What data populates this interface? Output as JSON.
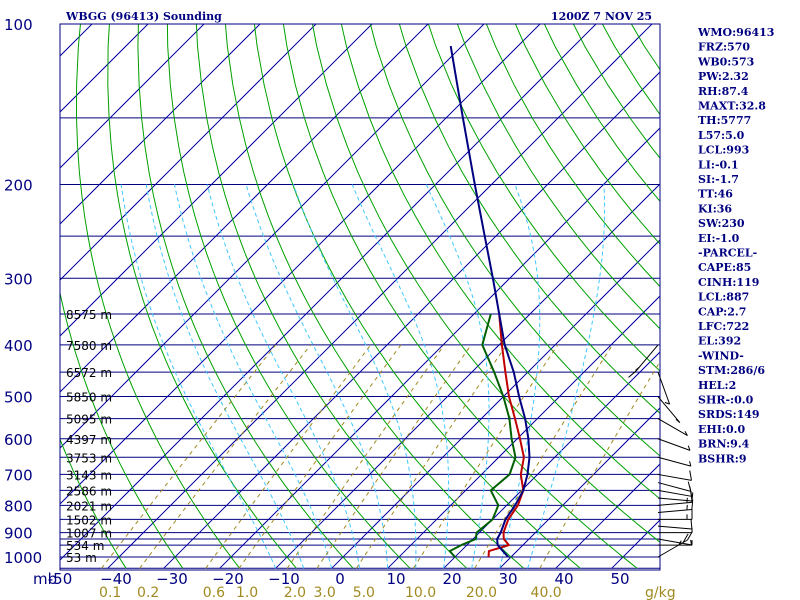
{
  "chart_data": {
    "type": "skew-t sounding",
    "title_left": "WBGG (96413) Sounding",
    "title_right": "1200Z  7 NOV 25",
    "pressure_unit_label": "mb",
    "mixing_ratio_unit_label": "g/kg",
    "pressure_ticks": [
      {
        "p": 100,
        "label": "100"
      },
      {
        "p": 200,
        "label": "200"
      },
      {
        "p": 300,
        "label": "300"
      },
      {
        "p": 400,
        "label": "400"
      },
      {
        "p": 500,
        "label": "500"
      },
      {
        "p": 600,
        "label": "600"
      },
      {
        "p": 700,
        "label": "700"
      },
      {
        "p": 800,
        "label": "800"
      },
      {
        "p": 900,
        "label": "900"
      },
      {
        "p": 1000,
        "label": "1000"
      }
    ],
    "isobars_mb": [
      100,
      150,
      200,
      250,
      300,
      350,
      400,
      450,
      500,
      550,
      600,
      650,
      700,
      750,
      800,
      850,
      900,
      925,
      950,
      1000,
      1050
    ],
    "temperature_ticks": [
      {
        "t": -50,
        "label": "-50"
      },
      {
        "t": -40,
        "label": "−40"
      },
      {
        "t": -30,
        "label": "−30"
      },
      {
        "t": -20,
        "label": "−20"
      },
      {
        "t": -10,
        "label": "−10"
      },
      {
        "t": 0,
        "label": "0"
      },
      {
        "t": 10,
        "label": "10"
      },
      {
        "t": 20,
        "label": "20"
      },
      {
        "t": 30,
        "label": "30"
      },
      {
        "t": 40,
        "label": "40"
      },
      {
        "t": 50,
        "label": "50"
      }
    ],
    "mixing_ratio_labels": [
      "0.1",
      "0.2",
      "0.6",
      "1.0",
      "2.0",
      "3.0",
      "5.0",
      "10.0",
      "20.0",
      "40.0"
    ],
    "height_labels": [
      {
        "p": 350,
        "label": "8575 m"
      },
      {
        "p": 400,
        "label": "7580 m"
      },
      {
        "p": 450,
        "label": "6572 m"
      },
      {
        "p": 500,
        "label": "5850 m"
      },
      {
        "p": 550,
        "label": "5095 m"
      },
      {
        "p": 600,
        "label": "4397 m"
      },
      {
        "p": 650,
        "label": "3753 m"
      },
      {
        "p": 700,
        "label": "3143 m"
      },
      {
        "p": 750,
        "label": "2586 m"
      },
      {
        "p": 800,
        "label": "2021 m"
      },
      {
        "p": 850,
        "label": "1502 m"
      },
      {
        "p": 900,
        "label": "1007 m"
      },
      {
        "p": 950,
        "label": "534 m"
      },
      {
        "p": 1000,
        "label": "53 m"
      }
    ],
    "series": [
      {
        "name": "temperature",
        "color": "#c00000",
        "points": [
          [
            1000,
            26
          ],
          [
            975,
            25
          ],
          [
            950,
            27.5
          ],
          [
            925,
            25.5
          ],
          [
            900,
            24.3
          ],
          [
            850,
            22.8
          ],
          [
            800,
            22
          ],
          [
            750,
            20.3
          ],
          [
            700,
            17
          ],
          [
            650,
            14.5
          ],
          [
            600,
            10.5
          ],
          [
            550,
            6
          ],
          [
            500,
            1
          ],
          [
            450,
            -4
          ],
          [
            400,
            -9.5
          ],
          [
            350,
            -15.5
          ]
        ]
      },
      {
        "name": "dewpoint",
        "color": "#006000",
        "points": [
          [
            1000,
            20
          ],
          [
            975,
            18
          ],
          [
            950,
            19
          ],
          [
            925,
            20.5
          ],
          [
            900,
            19.5
          ],
          [
            850,
            20
          ],
          [
            800,
            18.5
          ],
          [
            750,
            14.5
          ],
          [
            700,
            15
          ],
          [
            650,
            13
          ],
          [
            600,
            9
          ],
          [
            550,
            5
          ],
          [
            500,
            0
          ],
          [
            450,
            -6
          ],
          [
            400,
            -13
          ],
          [
            350,
            -17
          ]
        ]
      },
      {
        "name": "parcel",
        "color": "#000080",
        "points": [
          [
            1000,
            29.5
          ],
          [
            975,
            27.5
          ],
          [
            950,
            25.5
          ],
          [
            925,
            24.3
          ],
          [
            900,
            23.8
          ],
          [
            850,
            22.3
          ],
          [
            800,
            21.5
          ],
          [
            750,
            20.3
          ],
          [
            700,
            18.2
          ],
          [
            650,
            15.5
          ],
          [
            600,
            12
          ],
          [
            550,
            7.8
          ],
          [
            500,
            2.8
          ],
          [
            450,
            -2.5
          ],
          [
            400,
            -9
          ],
          [
            350,
            -15.5
          ],
          [
            300,
            -23
          ],
          [
            250,
            -32
          ],
          [
            200,
            -43
          ],
          [
            150,
            -57
          ],
          [
            110,
            -72
          ]
        ]
      }
    ],
    "winds": [
      {
        "p": 1000,
        "dir": 120,
        "kt": 25
      },
      {
        "p": 950,
        "dir": 90,
        "kt": 5
      },
      {
        "p": 925,
        "dir": 80,
        "kt": 5
      },
      {
        "p": 900,
        "dir": 90,
        "kt": 8
      },
      {
        "p": 875,
        "dir": 85,
        "kt": 12
      },
      {
        "p": 850,
        "dir": 90,
        "kt": 15
      },
      {
        "p": 825,
        "dir": 95,
        "kt": 15
      },
      {
        "p": 800,
        "dir": 95,
        "kt": 15
      },
      {
        "p": 775,
        "dir": 85,
        "kt": 12
      },
      {
        "p": 750,
        "dir": 80,
        "kt": 10
      },
      {
        "p": 725,
        "dir": 75,
        "kt": 10
      },
      {
        "p": 700,
        "dir": 80,
        "kt": 10
      },
      {
        "p": 650,
        "dir": 75,
        "kt": 8
      },
      {
        "p": 600,
        "dir": 70,
        "kt": 5
      },
      {
        "p": 550,
        "dir": 60,
        "kt": 5
      },
      {
        "p": 500,
        "dir": 40,
        "kt": 5
      },
      {
        "p": 450,
        "dir": 20,
        "kt": 5
      },
      {
        "p": 400,
        "dir": 320,
        "kt": 15
      }
    ],
    "indices": [
      "WMO:96413",
      "FRZ:570",
      "WB0:573",
      "PW:2.32",
      "RH:87.4",
      "MAXT:32.8",
      "TH:5777",
      "L57:5.0",
      "LCL:993",
      "LI:-0.1",
      "SI:-1.7",
      "TT:46",
      "KI:36",
      "SW:230",
      "EI:-1.0",
      "-PARCEL-",
      "CAPE:85",
      "CINH:119",
      "LCL:887",
      "CAP:2.7",
      "LFC:722",
      "EL:392",
      "-WIND-",
      "STM:286/6",
      "HEL:2",
      "SHR-:0.0",
      "SRDS:149",
      "EHI:0.0",
      "BRN:9.4",
      "BSHR:9"
    ],
    "colors": {
      "isobar": "#000080",
      "isotherm": "#0000a0",
      "dry_adiabat": "#00a000",
      "moist_adiabat": "#40c8ff",
      "mixing_ratio": "#a08a20",
      "text": "#000080"
    }
  }
}
